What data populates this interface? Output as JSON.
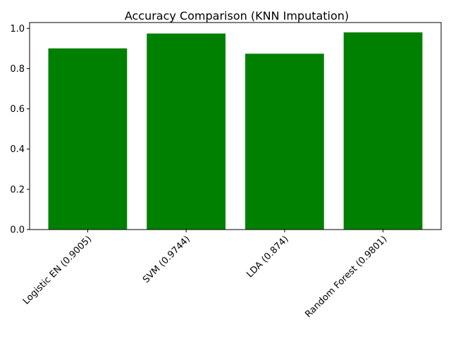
{
  "chart_data": {
    "type": "bar",
    "title": "Accuracy Comparison (KNN Imputation)",
    "xlabel": "",
    "ylabel": "",
    "categories": [
      "Logistic EN (0.9005)",
      "SVM (0.9744)",
      "LDA (0.874)",
      "Random Forest (0.9801)"
    ],
    "values": [
      0.9005,
      0.9744,
      0.874,
      0.9801
    ],
    "ylim": [
      0,
      1.029
    ],
    "yticks": [
      0.0,
      0.2,
      0.4,
      0.6,
      0.8,
      1.0
    ],
    "ytick_labels": [
      "0.0",
      "0.2",
      "0.4",
      "0.6",
      "0.8",
      "1.0"
    ],
    "bar_color": "#008000",
    "grid": false,
    "xtick_rotation": 45
  }
}
